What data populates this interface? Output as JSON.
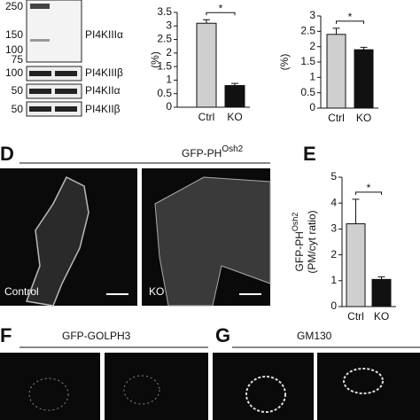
{
  "blot": {
    "markers": [
      "250",
      "150",
      "100",
      "75"
    ],
    "rows": [
      {
        "label": "PI4KIIIα",
        "mw": null
      },
      {
        "label": "PI4KIIIβ",
        "mw": "100"
      },
      {
        "label": "PI4KIIα",
        "mw": "50"
      },
      {
        "label": "PI4KIIβ",
        "mw": "50"
      }
    ]
  },
  "panels": {
    "d": {
      "letter": "D",
      "title": "GFP-PH",
      "title_sup": "Osh2",
      "images": [
        "Control",
        "KO"
      ]
    },
    "e": {
      "letter": "E"
    },
    "f": {
      "letter": "F",
      "title": "GFP-GOLPH3"
    },
    "g": {
      "letter": "G",
      "title": "GM130"
    }
  },
  "chart_data": [
    {
      "type": "bar",
      "ylabel": "(%)",
      "categories": [
        "Ctrl",
        "KO"
      ],
      "values": [
        3.1,
        0.8
      ],
      "errors": [
        0.13,
        0.08
      ],
      "colors": [
        "#cfcfcf",
        "#111111"
      ],
      "ylim": [
        0,
        3.5
      ],
      "yticks": [
        0,
        0.5,
        1,
        1.5,
        2,
        2.5,
        3,
        3.5
      ],
      "annotation": "*"
    },
    {
      "type": "bar",
      "ylabel": "(%)",
      "categories": [
        "Ctrl",
        "KO"
      ],
      "values": [
        2.4,
        1.9
      ],
      "errors": [
        0.2,
        0.08
      ],
      "colors": [
        "#cfcfcf",
        "#111111"
      ],
      "ylim": [
        0,
        3
      ],
      "yticks": [
        0,
        0.5,
        1,
        1.5,
        2,
        2.5,
        3
      ],
      "annotation": "*"
    },
    {
      "type": "bar",
      "ylabel": "GFP-PH",
      "ylabel_sup": "Osh2",
      "ylabel2": "(PM/cyt ratio)",
      "categories": [
        "Ctrl",
        "KO"
      ],
      "values": [
        3.2,
        1.05
      ],
      "errors": [
        0.95,
        0.1
      ],
      "colors": [
        "#cfcfcf",
        "#111111"
      ],
      "ylim": [
        0,
        5
      ],
      "yticks": [
        0,
        1,
        2,
        3,
        4,
        5
      ],
      "annotation": "*"
    }
  ]
}
